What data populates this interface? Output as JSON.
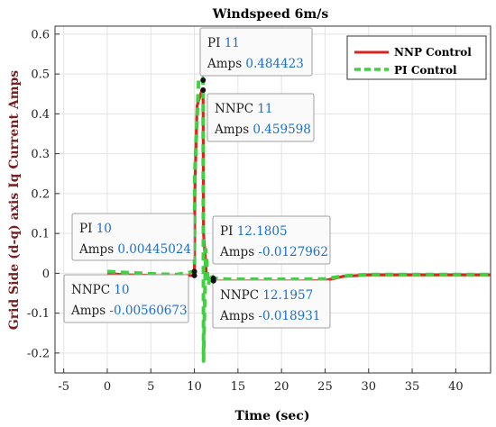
{
  "chart_data": {
    "type": "line",
    "title": "Windspeed 6m/s",
    "xlabel": "Time (sec)",
    "ylabel": "Grid Side (d-q) axis Iq Current Amps",
    "xlim": [
      -6,
      44
    ],
    "ylim": [
      -0.25,
      0.62
    ],
    "xticks": [
      -5,
      0,
      5,
      10,
      15,
      20,
      25,
      30,
      35,
      40
    ],
    "yticks": [
      -0.2,
      -0.1,
      0,
      0.1,
      0.2,
      0.3,
      0.4,
      0.5,
      0.6
    ],
    "ytick_labels": [
      "-0.2",
      "-0.1",
      "0",
      "0.1",
      "0.2",
      "0.3",
      "0.4",
      "0.5",
      "0.6"
    ],
    "grid": true,
    "legend_position": "top-right",
    "series": [
      {
        "name": "NNP Control",
        "color": "#d9261c",
        "style": "solid",
        "x": [
          0,
          2,
          4,
          6,
          8,
          10,
          10.05,
          10.3,
          10.9,
          11,
          11.05,
          11.4,
          11.8,
          12.1957,
          14,
          18,
          22,
          25,
          27,
          30,
          33,
          36,
          40,
          44
        ],
        "y": [
          0,
          -0.004,
          -0.005,
          -0.006,
          -0.006,
          -0.0056,
          0.2,
          0.42,
          0.462,
          0.459598,
          0.1,
          -0.01,
          -0.018,
          -0.018931,
          -0.019,
          -0.019,
          -0.019,
          -0.018,
          -0.008,
          -0.004,
          -0.004,
          -0.004,
          -0.004,
          -0.004
        ]
      },
      {
        "name": "PI Control",
        "color": "#3fd13f",
        "style": "dashed",
        "x": [
          0,
          2,
          4,
          6,
          8,
          10,
          10.05,
          10.5,
          10.95,
          11,
          11.05,
          11.3,
          11.6,
          11.9,
          12.1805,
          14,
          18,
          22,
          25,
          27,
          30,
          33,
          36,
          40,
          44
        ],
        "y": [
          0.00445024,
          0.002,
          0,
          -0.002,
          -0.003,
          0.00445024,
          0.25,
          0.49,
          0.49,
          0.484423,
          -0.22,
          0.06,
          -0.03,
          0.0,
          -0.0127962,
          -0.015,
          -0.015,
          -0.015,
          -0.014,
          -0.007,
          -0.003,
          -0.003,
          -0.003,
          -0.003,
          -0.003
        ]
      }
    ],
    "datatips": [
      {
        "series": "PI Control",
        "key1": "PI",
        "v1": "11",
        "key2": "Amps",
        "v2": "0.484423",
        "x": 11,
        "y": 0.484423
      },
      {
        "series": "NNP Control",
        "key1": "NNPC",
        "v1": "11",
        "key2": "Amps",
        "v2": "0.459598",
        "x": 11,
        "y": 0.459598
      },
      {
        "series": "PI Control",
        "key1": "PI",
        "v1": "10",
        "key2": "Amps",
        "v2": "0.00445024",
        "x": 10,
        "y": 0.00445024
      },
      {
        "series": "NNP Control",
        "key1": "NNPC",
        "v1": "10",
        "key2": "Amps",
        "v2": "-0.00560673",
        "x": 10,
        "y": -0.00560673
      },
      {
        "series": "PI Control",
        "key1": "PI",
        "v1": "12.1805",
        "key2": "Amps",
        "v2": "-0.0127962",
        "x": 12.1805,
        "y": -0.0127962
      },
      {
        "series": "NNP Control",
        "key1": "NNPC",
        "v1": "12.1957",
        "key2": "Amps",
        "v2": "-0.018931",
        "x": 12.1957,
        "y": -0.018931
      }
    ]
  }
}
